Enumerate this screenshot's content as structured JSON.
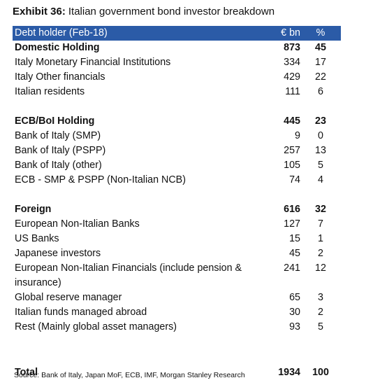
{
  "header": {
    "exhibit": "Exhibit 36:",
    "title": "Italian government bond investor breakdown"
  },
  "table": {
    "columns": [
      "Debt holder (Feb-18)",
      "€ bn",
      "%"
    ],
    "sections": [
      {
        "heading": [
          "Domestic Holding",
          873,
          45
        ],
        "rows": [
          [
            "Italy Monetary Financial Institutions",
            334,
            17
          ],
          [
            "Italy Other financials",
            429,
            22
          ],
          [
            "Italian residents",
            111,
            6
          ]
        ]
      },
      {
        "heading": [
          "ECB/BoI Holding",
          445,
          23
        ],
        "rows": [
          [
            "Bank of Italy (SMP)",
            9,
            0
          ],
          [
            "Bank of Italy (PSPP)",
            257,
            13
          ],
          [
            "Bank of Italy (other)",
            105,
            5
          ],
          [
            "ECB - SMP & PSPP (Non-Italian NCB)",
            74,
            4
          ]
        ]
      },
      {
        "heading": [
          "Foreign",
          616,
          32
        ],
        "rows": [
          [
            "European Non-Italian Banks",
            127,
            7
          ],
          [
            "US Banks",
            15,
            1
          ],
          [
            "Japanese investors",
            45,
            2
          ],
          [
            "European Non-Italian Financials (include pension & insurance)",
            241,
            12
          ],
          [
            "Global reserve manager",
            65,
            3
          ],
          [
            "Italian funds managed abroad",
            30,
            2
          ],
          [
            "Rest (Mainly global asset managers)",
            93,
            5
          ]
        ]
      }
    ],
    "total": [
      "Total",
      1934,
      100
    ]
  },
  "source": "Source: Bank of Italy, Japan MoF, ECB, IMF, Morgan Stanley Research"
}
